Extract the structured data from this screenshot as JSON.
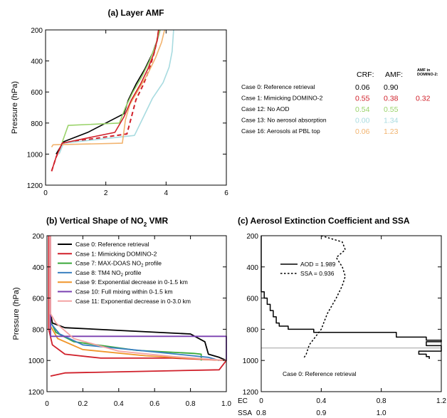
{
  "chart_data": [
    {
      "id": "a",
      "type": "line",
      "title": "(a) Layer AMF",
      "xlabel": "",
      "ylabel": "Pressure (hPa)",
      "xlim": [
        0,
        6
      ],
      "ylim": [
        1200,
        200
      ],
      "x_ticks": [
        "0",
        "2",
        "4",
        "6"
      ],
      "y_ticks": [
        "200",
        "400",
        "600",
        "800",
        "1000",
        "1200"
      ],
      "header": {
        "crf": "CRF:",
        "amf": "AMF:",
        "domino": "AMF in DOMINO-2:"
      },
      "series": [
        {
          "name": "Case 0: Reference retrieval",
          "crf": "0.06",
          "amf": "0.90",
          "domino": "",
          "color": "#000000",
          "dash": "",
          "points": [
            [
              0.35,
              1000
            ],
            [
              0.6,
              920
            ],
            [
              1.4,
              860
            ],
            [
              2.6,
              740
            ],
            [
              2.75,
              650
            ],
            [
              3.0,
              550
            ],
            [
              3.3,
              450
            ],
            [
              3.55,
              350
            ],
            [
              3.7,
              270
            ],
            [
              3.8,
              200
            ]
          ]
        },
        {
          "name": "Case 1: Mimicking DOMINO-2",
          "crf": "0.55",
          "amf": "0.38",
          "domino": "0.32",
          "color": "#d0202a",
          "dash": "6,4",
          "points": [
            [
              0.2,
              1110
            ],
            [
              0.35,
              1020
            ],
            [
              0.55,
              930
            ],
            [
              2.7,
              870
            ],
            [
              2.85,
              760
            ],
            [
              3.0,
              650
            ],
            [
              3.25,
              550
            ],
            [
              3.45,
              450
            ],
            [
              3.6,
              350
            ],
            [
              3.7,
              270
            ],
            [
              3.75,
              200
            ]
          ]
        },
        {
          "name": "Case 12: No AOD",
          "crf": "0.54",
          "amf": "0.55",
          "domino": "",
          "color": "#9ad36a",
          "dash": "",
          "points": [
            [
              0.55,
              925
            ],
            [
              0.75,
              815
            ],
            [
              2.45,
              800
            ],
            [
              2.65,
              700
            ],
            [
              2.9,
              600
            ],
            [
              3.2,
              500
            ],
            [
              3.45,
              400
            ],
            [
              3.65,
              300
            ],
            [
              3.8,
              200
            ]
          ]
        },
        {
          "name": "Case 13: No aerosol absorption",
          "crf": "0.00",
          "amf": "1.34",
          "domino": "",
          "color": "#a8dbe0",
          "dash": "",
          "points": [
            [
              0.45,
              1000
            ],
            [
              0.6,
              930
            ],
            [
              2.95,
              880
            ],
            [
              3.25,
              760
            ],
            [
              3.55,
              640
            ],
            [
              3.9,
              540
            ],
            [
              4.1,
              440
            ],
            [
              4.2,
              340
            ],
            [
              4.25,
              200
            ]
          ]
        },
        {
          "name": "Case 16: Aerosols at PBL top",
          "crf": "0.06",
          "amf": "1.23",
          "domino": "",
          "color": "#f2b36e",
          "dash": "",
          "points": [
            [
              0.2,
              955
            ],
            [
              0.25,
              940
            ],
            [
              2.55,
              930
            ],
            [
              2.65,
              780
            ],
            [
              2.8,
              680
            ],
            [
              3.1,
              580
            ],
            [
              3.4,
              480
            ],
            [
              3.65,
              380
            ],
            [
              3.85,
              280
            ],
            [
              3.95,
              200
            ]
          ]
        },
        {
          "name": "",
          "crf": "",
          "amf": "",
          "domino": "",
          "color": "#d0202a",
          "dash": "",
          "points": [
            [
              0.2,
              1110
            ],
            [
              0.35,
              1020
            ],
            [
              0.55,
              930
            ],
            [
              2.3,
              860
            ],
            [
              2.6,
              760
            ],
            [
              2.85,
              650
            ],
            [
              3.15,
              550
            ],
            [
              3.4,
              450
            ],
            [
              3.6,
              350
            ],
            [
              3.7,
              270
            ],
            [
              3.75,
              200
            ]
          ]
        }
      ]
    },
    {
      "id": "b",
      "type": "line",
      "title": "(b) Vertical Shape of NO",
      "title_sub": "2",
      "title_tail": " VMR",
      "xlabel": "",
      "ylabel": "Pressure (hPa)",
      "xlim": [
        0,
        1.0
      ],
      "ylim": [
        1200,
        200
      ],
      "x_ticks": [
        "0",
        "0.2",
        "0.4",
        "0.6",
        "0.8",
        "1.0"
      ],
      "y_ticks": [
        "200",
        "400",
        "600",
        "800",
        "1000",
        "1200"
      ],
      "series": [
        {
          "name": "Case 0: Reference retrieval",
          "color": "#000000",
          "points": [
            [
              0.02,
              200
            ],
            [
              0.02,
              700
            ],
            [
              0.03,
              760
            ],
            [
              0.1,
              790
            ],
            [
              0.8,
              830
            ],
            [
              0.88,
              880
            ],
            [
              0.9,
              960
            ],
            [
              0.96,
              980
            ],
            [
              1.0,
              1000
            ]
          ]
        },
        {
          "name": "Case 1: Mimicking DOMINO-2",
          "color": "#d0202a",
          "points": [
            [
              0.01,
              200
            ],
            [
              0.01,
              800
            ],
            [
              0.03,
              900
            ],
            [
              0.1,
              960
            ],
            [
              0.3,
              985
            ],
            [
              0.7,
              985
            ],
            [
              1.0,
              1000
            ],
            [
              0.96,
              1060
            ],
            [
              0.1,
              1080
            ],
            [
              0.02,
              1100
            ]
          ]
        },
        {
          "name": "Case 7: MAX-DOAS NO2 profile",
          "color": "#3aa83a",
          "points": [
            [
              0.02,
              200
            ],
            [
              0.02,
              750
            ],
            [
              0.05,
              820
            ],
            [
              0.15,
              880
            ],
            [
              0.5,
              935
            ],
            [
              0.82,
              955
            ],
            [
              0.86,
              960
            ],
            [
              0.86,
              1000
            ]
          ]
        },
        {
          "name": "Case 8: TM4 NO2 profile",
          "color": "#3a80c0",
          "points": [
            [
              0.02,
              200
            ],
            [
              0.02,
              760
            ],
            [
              0.07,
              830
            ],
            [
              0.2,
              900
            ],
            [
              0.6,
              945
            ],
            [
              0.9,
              980
            ],
            [
              0.96,
              1000
            ]
          ]
        },
        {
          "name": "Case 9: Exponential decrease in 0-1.5 km",
          "color": "#f0962a",
          "points": [
            [
              0.02,
              200
            ],
            [
              0.02,
              780
            ],
            [
              0.06,
              860
            ],
            [
              0.2,
              930
            ],
            [
              0.55,
              970
            ],
            [
              1.0,
              1000
            ]
          ]
        },
        {
          "name": "Case 10: Full mixing within 0-1.5 km",
          "color": "#7a40b0",
          "points": [
            [
              0.02,
              200
            ],
            [
              0.02,
              845
            ],
            [
              1.0,
              845
            ],
            [
              1.0,
              1000
            ]
          ]
        },
        {
          "name": "Case 11: Exponential decrease in 0-3.0 km",
          "color": "#f4a3a3",
          "points": [
            [
              0.02,
              200
            ],
            [
              0.02,
              700
            ],
            [
              0.05,
              760
            ],
            [
              0.15,
              860
            ],
            [
              0.4,
              940
            ],
            [
              0.7,
              975
            ],
            [
              1.0,
              1000
            ]
          ]
        }
      ]
    },
    {
      "id": "c",
      "type": "line",
      "title": "(c) Aerosol Extinction Coefficient and SSA",
      "annotation": "Case 0: Reference retrieval",
      "ylim": [
        1200,
        200
      ],
      "y_ticks": [
        "200",
        "400",
        "600",
        "800",
        "1000",
        "1200"
      ],
      "ec_label": "EC",
      "ssa_label": "SSA",
      "ec_lim": [
        0,
        1.2
      ],
      "ssa_lim": [
        0.8,
        1.1
      ],
      "ec_ticks": [
        "0",
        "0.4",
        "0.8",
        "1.2"
      ],
      "ssa_ticks": [
        "0.8",
        "0.9",
        "1.0"
      ],
      "ref_line_p": 920,
      "series": [
        {
          "name": "AOD = 1.989",
          "axis": "ec",
          "color": "#000000",
          "dash": "",
          "points": [
            [
              0,
              200
            ],
            [
              0,
              560
            ],
            [
              0.02,
              560
            ],
            [
              0.02,
              600
            ],
            [
              0.04,
              600
            ],
            [
              0.04,
              640
            ],
            [
              0.06,
              640
            ],
            [
              0.06,
              680
            ],
            [
              0.08,
              680
            ],
            [
              0.08,
              720
            ],
            [
              0.1,
              720
            ],
            [
              0.1,
              760
            ],
            [
              0.12,
              760
            ],
            [
              0.12,
              780
            ],
            [
              0.18,
              780
            ],
            [
              0.18,
              800
            ],
            [
              0.35,
              800
            ],
            [
              0.35,
              820
            ],
            [
              0.9,
              820
            ],
            [
              0.9,
              850
            ],
            [
              1.1,
              850
            ],
            [
              1.1,
              870
            ],
            [
              1.2,
              870
            ],
            [
              1.2,
              880
            ],
            [
              1.1,
              880
            ],
            [
              1.1,
              905
            ],
            [
              1.2,
              905
            ],
            [
              1.2,
              940
            ],
            [
              1.05,
              940
            ],
            [
              1.05,
              960
            ],
            [
              1.1,
              960
            ],
            [
              1.1,
              975
            ],
            [
              1.12,
              975
            ],
            [
              1.12,
              990
            ]
          ]
        },
        {
          "name": "SSA = 0.936",
          "axis": "ssa",
          "color": "#000000",
          "dash": "2.5,2.5",
          "points": [
            [
              0.9,
              200
            ],
            [
              0.935,
              240
            ],
            [
              0.94,
              290
            ],
            [
              0.925,
              340
            ],
            [
              0.935,
              400
            ],
            [
              0.94,
              460
            ],
            [
              0.935,
              520
            ],
            [
              0.925,
              600
            ],
            [
              0.91,
              700
            ],
            [
              0.9,
              800
            ],
            [
              0.88,
              900
            ],
            [
              0.875,
              960
            ],
            [
              0.87,
              990
            ]
          ]
        }
      ]
    }
  ]
}
